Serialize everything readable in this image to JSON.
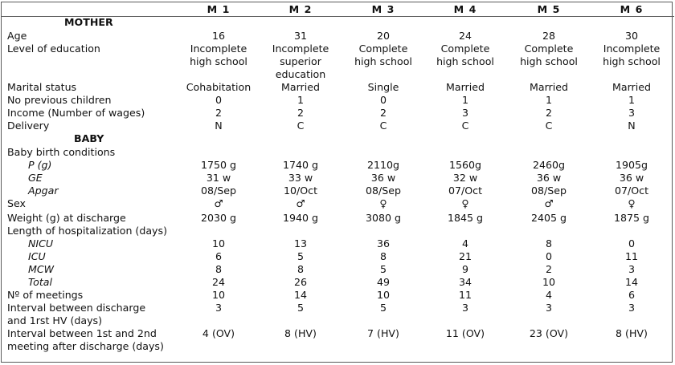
{
  "columns": [
    "M 1",
    "M 2",
    "M 3",
    "M 4",
    "M 5",
    "M 6"
  ],
  "sections": {
    "mother": "MOTHER",
    "baby": "BABY"
  },
  "rows": {
    "age": {
      "label": "Age",
      "values": [
        "16",
        "31",
        "20",
        "24",
        "28",
        "30"
      ]
    },
    "education": {
      "label": "Level of education",
      "values": [
        [
          "Incomplete",
          "high school",
          ""
        ],
        [
          "Incomplete",
          "superior",
          "education"
        ],
        [
          "Complete",
          "high school",
          ""
        ],
        [
          "Complete",
          "high school",
          ""
        ],
        [
          "Complete",
          "high school",
          ""
        ],
        [
          "Incomplete",
          "high school",
          ""
        ]
      ]
    },
    "marital": {
      "label": "Marital status",
      "values": [
        "Cohabitation",
        "Married",
        "Single",
        "Married",
        "Married",
        "Married"
      ]
    },
    "children": {
      "label": "No previous children",
      "values": [
        "0",
        "1",
        "0",
        "1",
        "1",
        "1"
      ]
    },
    "income": {
      "label": "Income (Number of wages)",
      "values": [
        "2",
        "2",
        "2",
        "3",
        "2",
        "3"
      ]
    },
    "delivery": {
      "label": "Delivery",
      "values": [
        "N",
        "C",
        "C",
        "C",
        "C",
        "N"
      ]
    },
    "birth": {
      "label": "Baby birth conditions"
    },
    "weight": {
      "label": "P (g)",
      "values": [
        "1750 g",
        "1740 g",
        "2110g",
        "1560g",
        "2460g",
        "1905g"
      ]
    },
    "ge": {
      "label": "GE",
      "values": [
        "31 w",
        "33 w",
        "36 w",
        "32 w",
        "36 w",
        "36 w"
      ]
    },
    "apgar": {
      "label": "Apgar",
      "values": [
        "08/Sep",
        "10/Oct",
        "08/Sep",
        "07/Oct",
        "08/Sep",
        "07/Oct"
      ]
    },
    "sex": {
      "label": "Sex",
      "values": [
        "♂",
        "♂",
        "♀",
        "♀",
        "♂",
        "♀"
      ]
    },
    "discharge_weight": {
      "label": "Weight (g) at discharge",
      "values": [
        "2030 g",
        "1940 g",
        "3080 g",
        "1845 g",
        "2405 g",
        "1875 g"
      ]
    },
    "hosp": {
      "label": "Length of hospitalization (days)"
    },
    "nicu": {
      "label": "NICU",
      "values": [
        "10",
        "13",
        "36",
        "4",
        "8",
        "0"
      ]
    },
    "icu": {
      "label": "ICU",
      "values": [
        "6",
        "5",
        "8",
        "21",
        "0",
        "11"
      ]
    },
    "mcw": {
      "label": "MCW",
      "values": [
        "8",
        "8",
        "5",
        "9",
        "2",
        "3"
      ]
    },
    "total": {
      "label": "Total",
      "values": [
        "24",
        "26",
        "49",
        "34",
        "10",
        "14"
      ]
    },
    "meetings": {
      "label": "Nº of meetings",
      "values": [
        "10",
        "14",
        "10",
        "11",
        "4",
        "6"
      ]
    },
    "interval_hv": {
      "label": [
        "Interval between discharge",
        "and 1rst HV (days)"
      ],
      "values": [
        "3",
        "5",
        "5",
        "3",
        "3",
        "3"
      ]
    },
    "interval_2nd": {
      "label": [
        "Interval between 1st and 2nd",
        "meeting after discharge (days)"
      ],
      "values": [
        "4 (OV)",
        "8 (HV)",
        "7 (HV)",
        "11 (OV)",
        "23 (OV)",
        "8 (HV)"
      ]
    }
  }
}
